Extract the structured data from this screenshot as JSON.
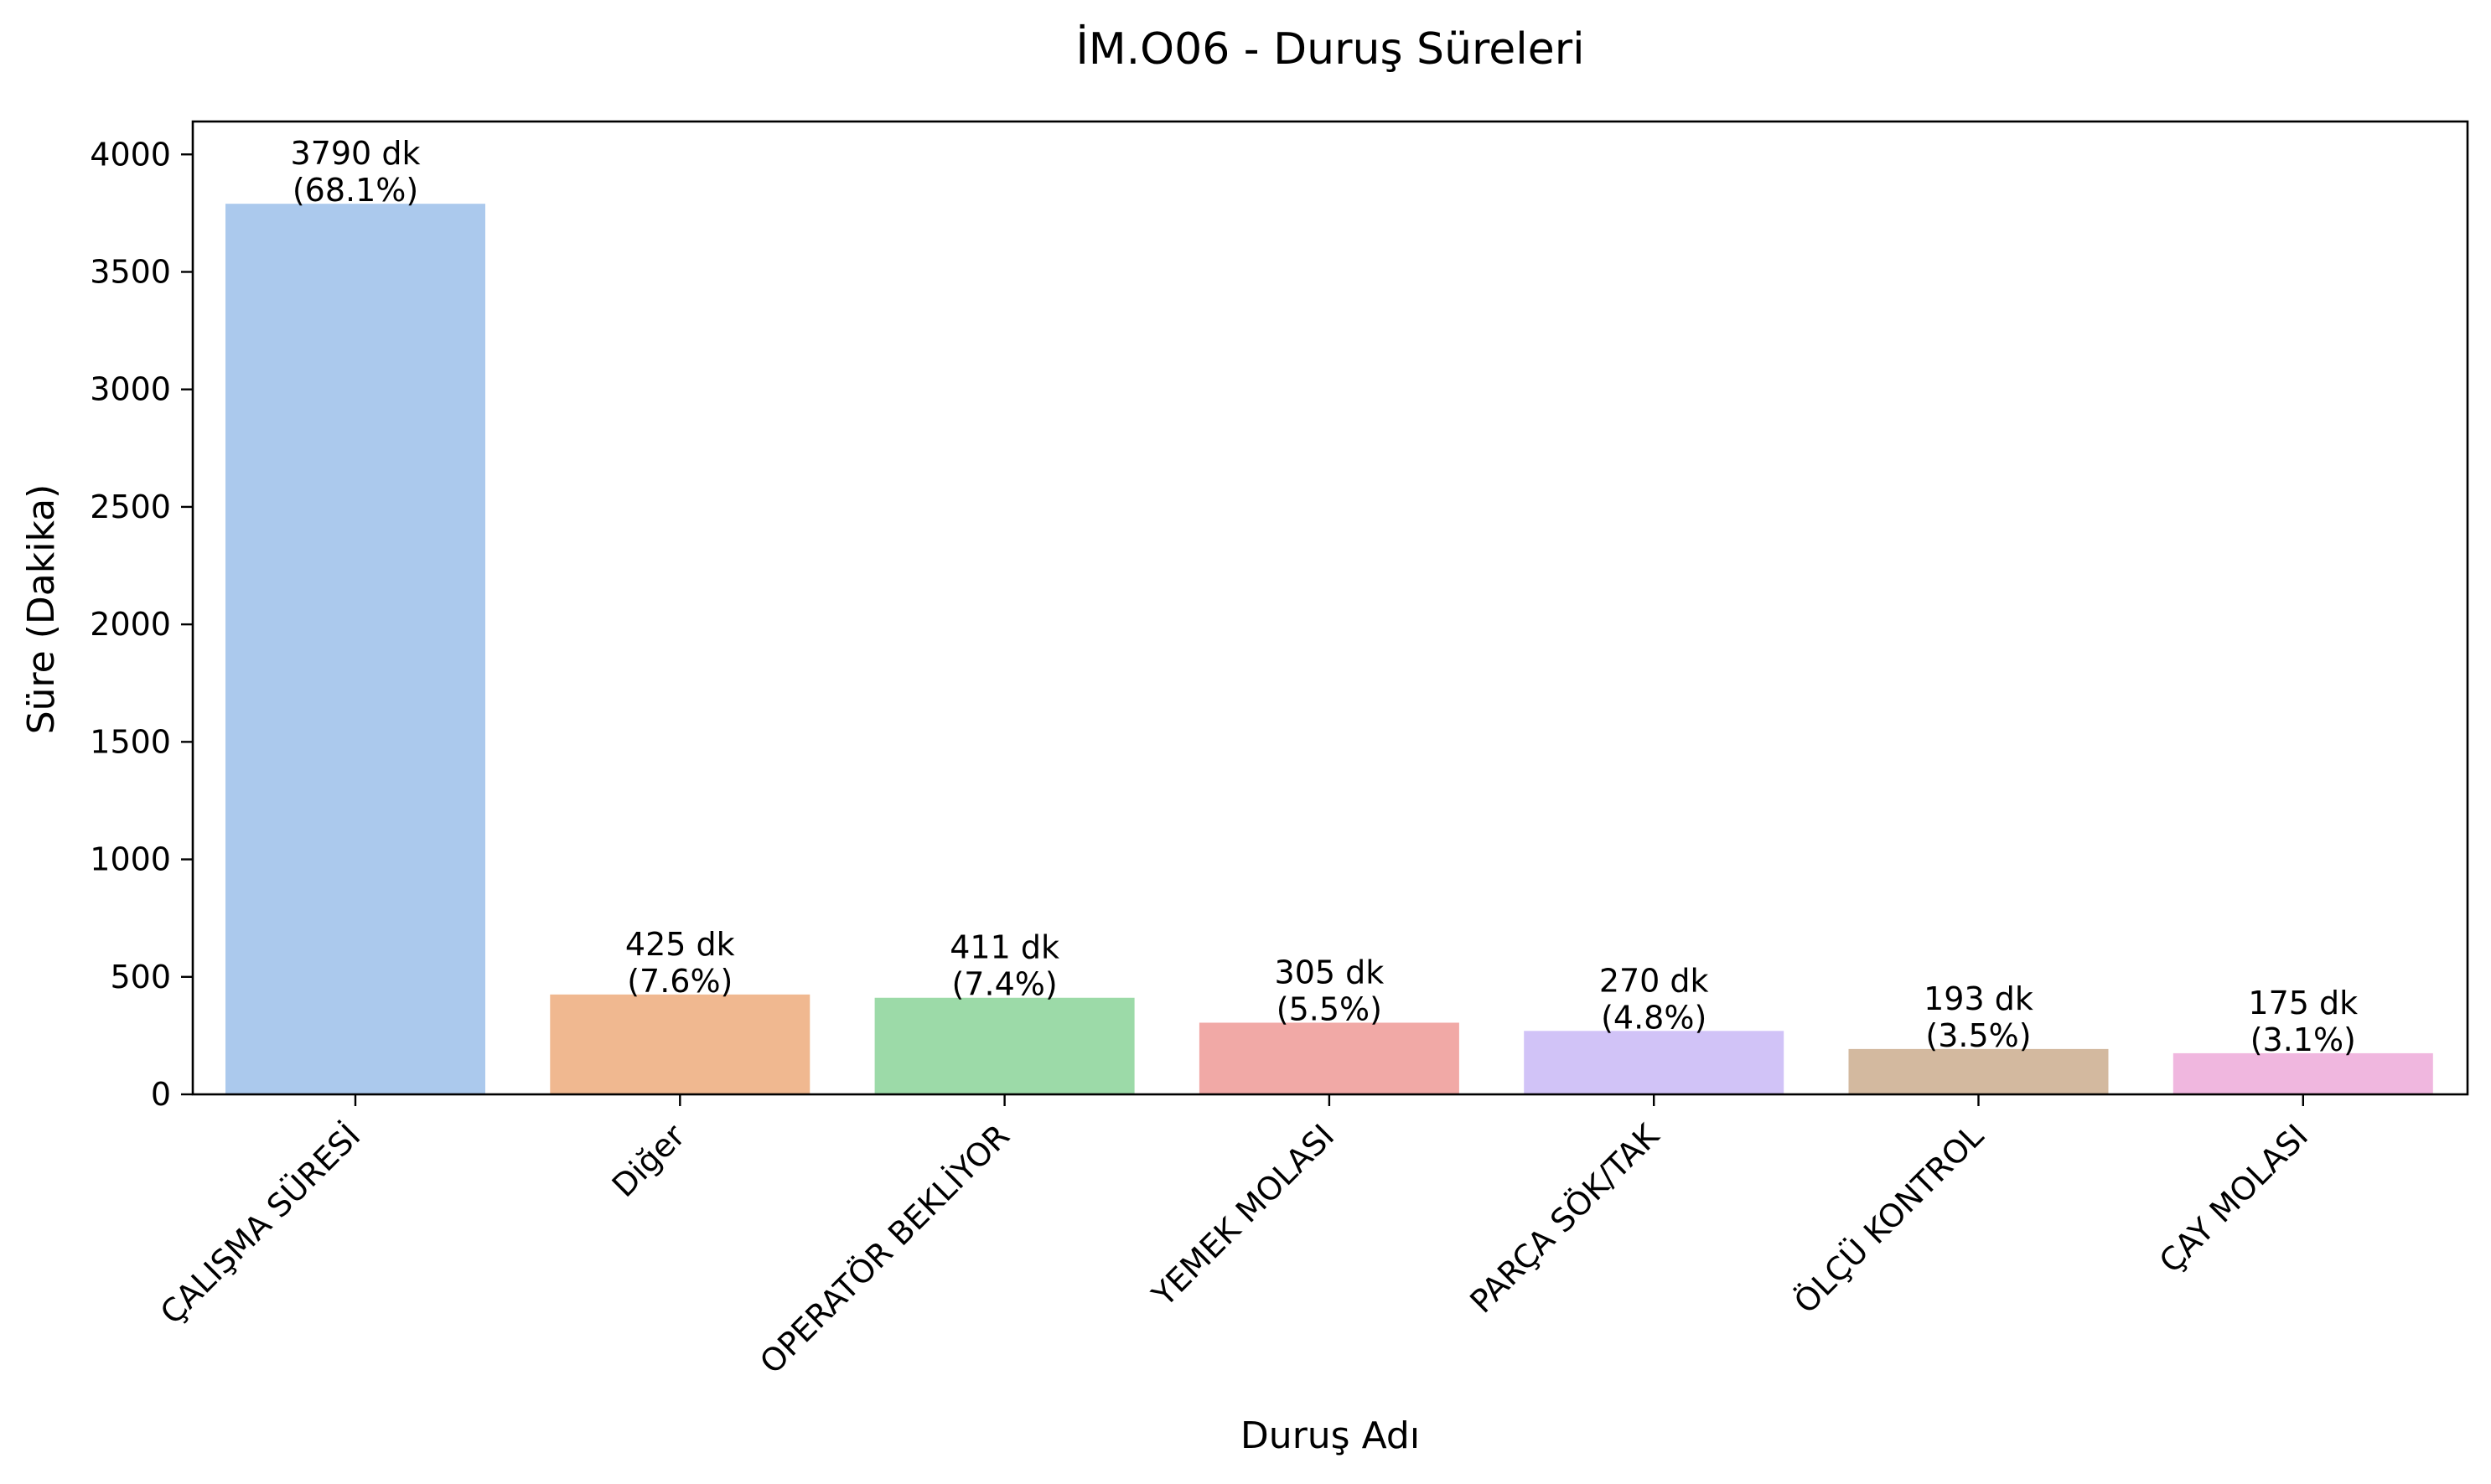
{
  "chart_data": {
    "type": "bar",
    "title": "İM.O06 - Duruş Süreleri",
    "xlabel": "Duruş Adı",
    "ylabel": "Süre (Dakika)",
    "categories": [
      "ÇALIŞMA SÜRESİ",
      "Diğer",
      "OPERATÖR BEKLİYOR",
      "YEMEK MOLASI",
      "PARÇA SÖK/TAK",
      "ÖLÇÜ KONTROL",
      "ÇAY MOLASI"
    ],
    "values": [
      3790,
      425,
      411,
      305,
      270,
      193,
      175
    ],
    "labels_line1": [
      "3790 dk",
      "425 dk",
      "411 dk",
      "305 dk",
      "270 dk",
      "193 dk",
      "175 dk"
    ],
    "labels_line2": [
      "(68.1%)",
      "(7.6%)",
      "(7.4%)",
      "(5.5%)",
      "(4.8%)",
      "(3.5%)",
      "(3.1%)"
    ],
    "colors": [
      "#abc9ed",
      "#f0b890",
      "#9cdaa8",
      "#f1a9a6",
      "#d1c3f7",
      "#d3b99f",
      "#f0b7df"
    ],
    "yticks": [
      0,
      500,
      1000,
      1500,
      2000,
      2500,
      3000,
      3500,
      4000
    ],
    "ylim": [
      0,
      4140
    ],
    "grid": false,
    "legend": "none"
  }
}
